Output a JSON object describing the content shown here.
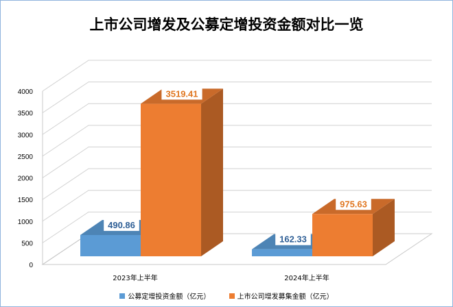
{
  "chart_data": {
    "type": "bar",
    "title": "上市公司增发及公募定增投资金额对比一览",
    "categories": [
      "2023年上半年",
      "2024年上半年"
    ],
    "series": [
      {
        "name": "公募定增投资金额（亿元",
        "values": [
          490.86,
          162.33
        ],
        "color": "#5b9bd5"
      },
      {
        "name": "上市公司增发募集金额（亿元",
        "values": [
          3519.41,
          975.63
        ],
        "color": "#ed7d31"
      }
    ],
    "yticks": [
      "0",
      "500",
      "1000",
      "1500",
      "2000",
      "2500",
      "3000",
      "3500",
      "4000"
    ],
    "ylim": [
      0,
      4000
    ],
    "grid": true,
    "legend": "bottom",
    "data_labels": [
      "490.86",
      "162.33",
      "3519.41",
      "975.63"
    ]
  }
}
